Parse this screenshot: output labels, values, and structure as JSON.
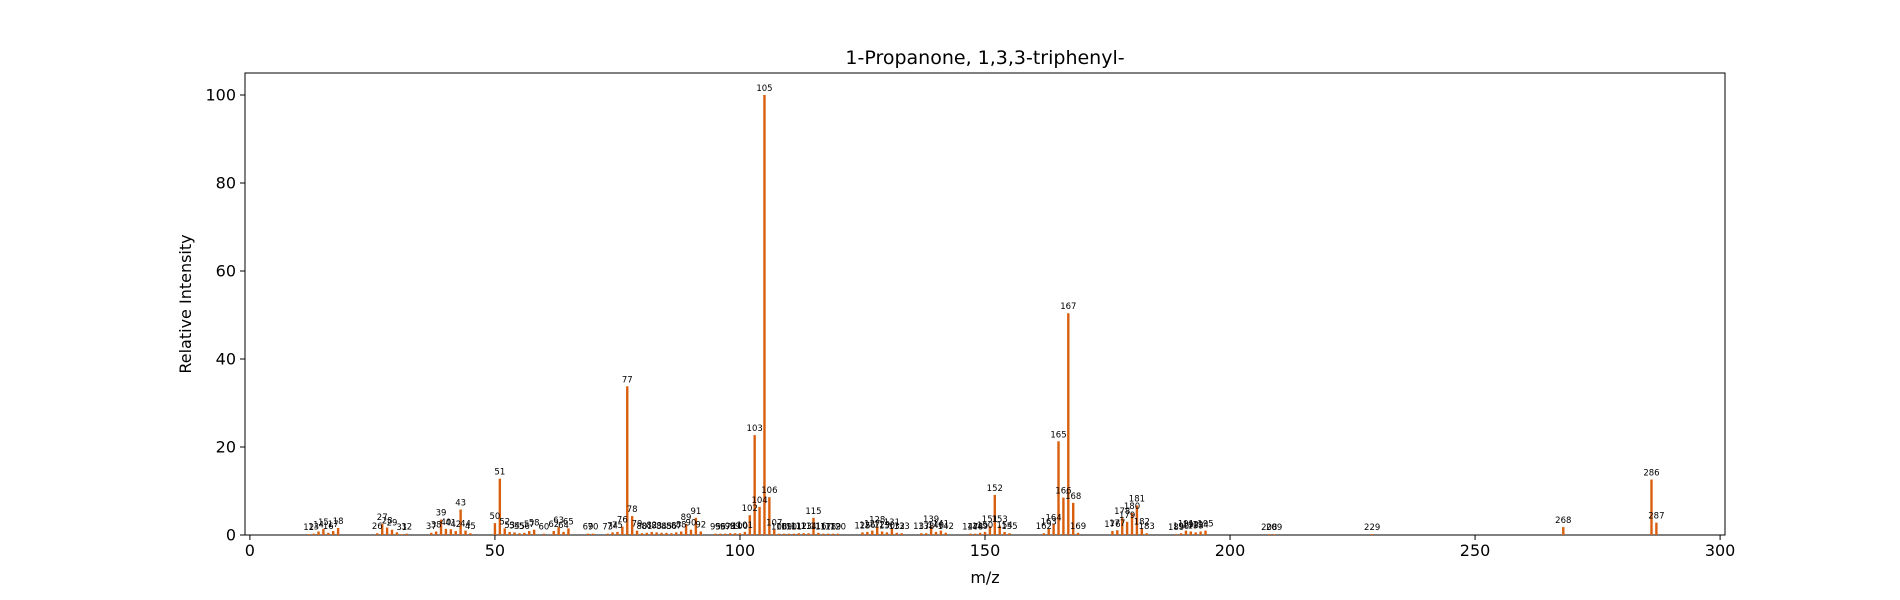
{
  "chart_data": {
    "type": "bar",
    "title": "1-Propanone, 1,3,3-triphenyl-",
    "xlabel": "m/z",
    "ylabel": "Relative Intensity",
    "xlim": [
      -1,
      301
    ],
    "ylim": [
      0,
      105
    ],
    "xticks": [
      0,
      50,
      100,
      150,
      200,
      250,
      300
    ],
    "yticks": [
      0,
      20,
      40,
      60,
      80,
      100
    ],
    "grid": false,
    "bar_color": "#d95f0e",
    "series": [
      {
        "mz": [
          12,
          13,
          14,
          15,
          16,
          17,
          18,
          26,
          27,
          28,
          29,
          30,
          31,
          32,
          37,
          38,
          39,
          40,
          41,
          42,
          43,
          44,
          45,
          50,
          51,
          52,
          53,
          54,
          55,
          56,
          57,
          58,
          60,
          62,
          63,
          64,
          65,
          69,
          70,
          73,
          74,
          75,
          76,
          77,
          78,
          79,
          80,
          81,
          82,
          83,
          84,
          85,
          86,
          87,
          88,
          89,
          90,
          91,
          92,
          95,
          96,
          97,
          98,
          99,
          100,
          101,
          102,
          103,
          104,
          105,
          106,
          107,
          108,
          109,
          110,
          111,
          112,
          113,
          114,
          115,
          116,
          117,
          118,
          119,
          120,
          125,
          126,
          127,
          128,
          129,
          130,
          131,
          132,
          133,
          137,
          138,
          139,
          140,
          141,
          142,
          147,
          148,
          149,
          150,
          151,
          152,
          153,
          154,
          155,
          162,
          163,
          164,
          165,
          166,
          167,
          168,
          169,
          176,
          177,
          178,
          179,
          180,
          181,
          182,
          183,
          189,
          190,
          191,
          192,
          193,
          194,
          195,
          208,
          209,
          229,
          268,
          286,
          287
        ],
        "values": [
          0.2,
          0.3,
          0.8,
          1.4,
          0.5,
          0.9,
          1.6,
          0.4,
          2.5,
          1.7,
          1.2,
          0.6,
          0.2,
          0.3,
          0.5,
          0.8,
          3.5,
          1.4,
          1.3,
          0.9,
          5.8,
          1.0,
          0.4,
          2.7,
          12.8,
          1.5,
          0.7,
          0.6,
          0.4,
          0.5,
          0.9,
          1.2,
          0.3,
          0.9,
          1.8,
          0.7,
          1.5,
          0.3,
          0.3,
          0.3,
          0.6,
          0.7,
          1.9,
          33.8,
          4.3,
          1.0,
          0.4,
          0.5,
          0.7,
          0.6,
          0.5,
          0.5,
          0.4,
          0.6,
          0.8,
          2.5,
          1.2,
          3.9,
          0.8,
          0.3,
          0.3,
          0.3,
          0.4,
          0.4,
          0.4,
          0.7,
          4.5,
          22.7,
          6.4,
          100.0,
          8.6,
          1.2,
          0.3,
          0.3,
          0.3,
          0.3,
          0.4,
          0.4,
          0.4,
          3.9,
          0.5,
          0.3,
          0.3,
          0.3,
          0.3,
          0.6,
          0.7,
          1.0,
          1.9,
          0.8,
          0.6,
          1.4,
          0.5,
          0.4,
          0.4,
          0.4,
          2.0,
          0.7,
          1.0,
          0.5,
          0.3,
          0.3,
          0.5,
          0.7,
          2.0,
          9.1,
          2.1,
          0.7,
          0.4,
          0.4,
          1.5,
          2.4,
          21.3,
          8.5,
          50.4,
          7.3,
          0.5,
          0.9,
          1.1,
          3.9,
          3.0,
          5.0,
          6.7,
          1.5,
          0.4,
          0.2,
          0.4,
          1.0,
          0.8,
          0.6,
          0.8,
          1.0,
          0.2,
          0.2,
          0.2,
          1.8,
          12.6,
          2.8
        ]
      }
    ],
    "peak_labels": [
      {
        "mz": 12,
        "text": "12"
      },
      {
        "mz": 13,
        "text": "13"
      },
      {
        "mz": 14,
        "text": "14"
      },
      {
        "mz": 15,
        "text": "15"
      },
      {
        "mz": 16,
        "text": "16"
      },
      {
        "mz": 17,
        "text": "17"
      },
      {
        "mz": 18,
        "text": "18"
      },
      {
        "mz": 26,
        "text": "26"
      },
      {
        "mz": 27,
        "text": "27"
      },
      {
        "mz": 28,
        "text": "28"
      },
      {
        "mz": 29,
        "text": "29"
      },
      {
        "mz": 31,
        "text": "31"
      },
      {
        "mz": 32,
        "text": "32"
      },
      {
        "mz": 37,
        "text": "37"
      },
      {
        "mz": 38,
        "text": "38"
      },
      {
        "mz": 39,
        "text": "39"
      },
      {
        "mz": 40,
        "text": "40"
      },
      {
        "mz": 41,
        "text": "41"
      },
      {
        "mz": 42,
        "text": "42"
      },
      {
        "mz": 43,
        "text": "43"
      },
      {
        "mz": 44,
        "text": "44"
      },
      {
        "mz": 45,
        "text": "45"
      },
      {
        "mz": 50,
        "text": "50"
      },
      {
        "mz": 51,
        "text": "51"
      },
      {
        "mz": 52,
        "text": "52"
      },
      {
        "mz": 53,
        "text": "53"
      },
      {
        "mz": 54,
        "text": "54"
      },
      {
        "mz": 55,
        "text": "55"
      },
      {
        "mz": 56,
        "text": "56"
      },
      {
        "mz": 57,
        "text": "57"
      },
      {
        "mz": 58,
        "text": "58"
      },
      {
        "mz": 60,
        "text": "60"
      },
      {
        "mz": 62,
        "text": "62"
      },
      {
        "mz": 63,
        "text": "63"
      },
      {
        "mz": 64,
        "text": "64"
      },
      {
        "mz": 65,
        "text": "65"
      },
      {
        "mz": 69,
        "text": "69"
      },
      {
        "mz": 70,
        "text": "70"
      },
      {
        "mz": 73,
        "text": "73"
      },
      {
        "mz": 74,
        "text": "74"
      },
      {
        "mz": 75,
        "text": "75"
      },
      {
        "mz": 76,
        "text": "76"
      },
      {
        "mz": 77,
        "text": "77"
      },
      {
        "mz": 78,
        "text": "78"
      },
      {
        "mz": 79,
        "text": "79"
      },
      {
        "mz": 80,
        "text": "80"
      },
      {
        "mz": 81,
        "text": "81"
      },
      {
        "mz": 82,
        "text": "82"
      },
      {
        "mz": 83,
        "text": "83"
      },
      {
        "mz": 84,
        "text": "84"
      },
      {
        "mz": 85,
        "text": "85"
      },
      {
        "mz": 86,
        "text": "86"
      },
      {
        "mz": 87,
        "text": "87"
      },
      {
        "mz": 88,
        "text": "88"
      },
      {
        "mz": 89,
        "text": "89"
      },
      {
        "mz": 90,
        "text": "90"
      },
      {
        "mz": 91,
        "text": "91"
      },
      {
        "mz": 92,
        "text": "92"
      },
      {
        "mz": 95,
        "text": "95"
      },
      {
        "mz": 96,
        "text": "96"
      },
      {
        "mz": 97,
        "text": "97"
      },
      {
        "mz": 98,
        "text": "98"
      },
      {
        "mz": 99,
        "text": "99"
      },
      {
        "mz": 100,
        "text": "100"
      },
      {
        "mz": 101,
        "text": "101"
      },
      {
        "mz": 102,
        "text": "102"
      },
      {
        "mz": 103,
        "text": "103"
      },
      {
        "mz": 104,
        "text": "104"
      },
      {
        "mz": 105,
        "text": "105"
      },
      {
        "mz": 106,
        "text": "106"
      },
      {
        "mz": 107,
        "text": "107"
      },
      {
        "mz": 108,
        "text": "108"
      },
      {
        "mz": 109,
        "text": "109"
      },
      {
        "mz": 110,
        "text": "110"
      },
      {
        "mz": 111,
        "text": "111"
      },
      {
        "mz": 112,
        "text": "112"
      },
      {
        "mz": 113,
        "text": "113"
      },
      {
        "mz": 114,
        "text": "114"
      },
      {
        "mz": 115,
        "text": "115"
      },
      {
        "mz": 116,
        "text": "116"
      },
      {
        "mz": 117,
        "text": "117"
      },
      {
        "mz": 118,
        "text": "118"
      },
      {
        "mz": 119,
        "text": "119"
      },
      {
        "mz": 120,
        "text": "120"
      },
      {
        "mz": 125,
        "text": "125"
      },
      {
        "mz": 126,
        "text": "126"
      },
      {
        "mz": 127,
        "text": "127"
      },
      {
        "mz": 128,
        "text": "128"
      },
      {
        "mz": 129,
        "text": "129"
      },
      {
        "mz": 130,
        "text": "130"
      },
      {
        "mz": 131,
        "text": "131"
      },
      {
        "mz": 132,
        "text": "132"
      },
      {
        "mz": 133,
        "text": "133"
      },
      {
        "mz": 137,
        "text": "137"
      },
      {
        "mz": 138,
        "text": "138"
      },
      {
        "mz": 139,
        "text": "139"
      },
      {
        "mz": 140,
        "text": "140"
      },
      {
        "mz": 141,
        "text": "141"
      },
      {
        "mz": 142,
        "text": "142"
      },
      {
        "mz": 147,
        "text": "147"
      },
      {
        "mz": 148,
        "text": "148"
      },
      {
        "mz": 149,
        "text": "149"
      },
      {
        "mz": 150,
        "text": "150"
      },
      {
        "mz": 151,
        "text": "151"
      },
      {
        "mz": 152,
        "text": "152"
      },
      {
        "mz": 153,
        "text": "153"
      },
      {
        "mz": 154,
        "text": "154"
      },
      {
        "mz": 155,
        "text": "155"
      },
      {
        "mz": 162,
        "text": "162"
      },
      {
        "mz": 163,
        "text": "163"
      },
      {
        "mz": 164,
        "text": "164"
      },
      {
        "mz": 165,
        "text": "165"
      },
      {
        "mz": 166,
        "text": "166"
      },
      {
        "mz": 167,
        "text": "167"
      },
      {
        "mz": 168,
        "text": "168"
      },
      {
        "mz": 169,
        "text": "169"
      },
      {
        "mz": 176,
        "text": "176"
      },
      {
        "mz": 177,
        "text": "177"
      },
      {
        "mz": 178,
        "text": "178"
      },
      {
        "mz": 179,
        "text": "179"
      },
      {
        "mz": 180,
        "text": "180"
      },
      {
        "mz": 181,
        "text": "181"
      },
      {
        "mz": 182,
        "text": "182"
      },
      {
        "mz": 183,
        "text": "183"
      },
      {
        "mz": 189,
        "text": "189"
      },
      {
        "mz": 190,
        "text": "190"
      },
      {
        "mz": 191,
        "text": "191"
      },
      {
        "mz": 192,
        "text": "192"
      },
      {
        "mz": 193,
        "text": "193"
      },
      {
        "mz": 194,
        "text": "194"
      },
      {
        "mz": 195,
        "text": "195"
      },
      {
        "mz": 208,
        "text": "208"
      },
      {
        "mz": 209,
        "text": "209"
      },
      {
        "mz": 229,
        "text": "229"
      },
      {
        "mz": 268,
        "text": "268"
      },
      {
        "mz": 286,
        "text": "286"
      },
      {
        "mz": 287,
        "text": "287"
      }
    ]
  }
}
